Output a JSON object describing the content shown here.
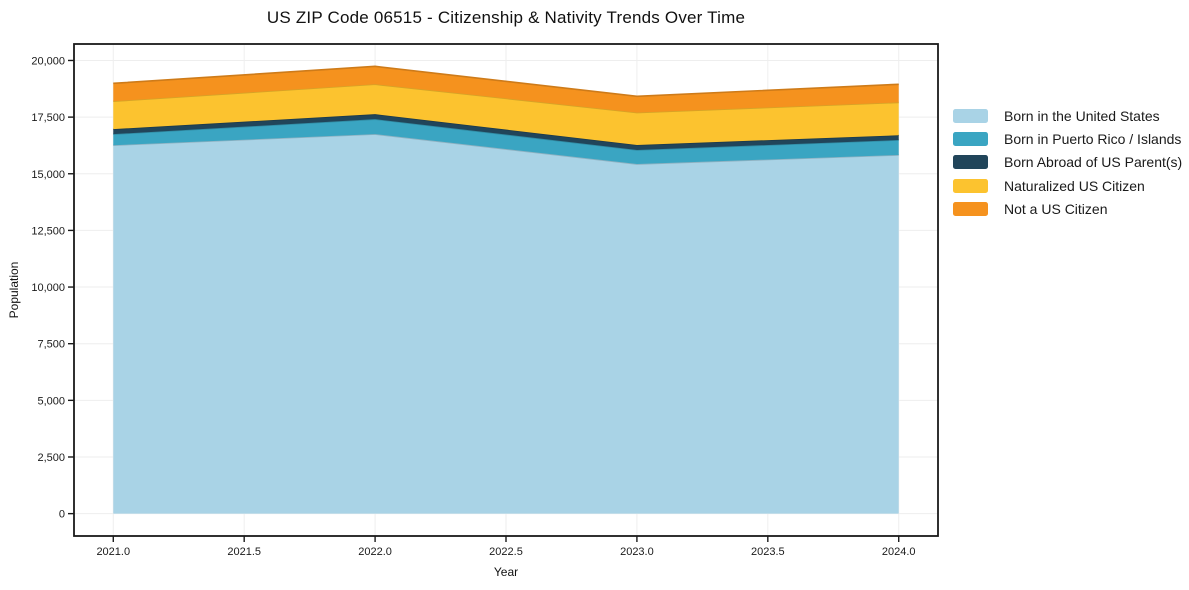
{
  "chart": {
    "title": "US ZIP Code 06515 - Citizenship & Nativity Trends Over Time",
    "xlabel": "Year",
    "ylabel": "Population"
  },
  "chart_data": {
    "type": "area",
    "stacked": true,
    "title": "US ZIP Code 06515 - Citizenship & Nativity Trends Over Time",
    "xlabel": "Year",
    "ylabel": "Population",
    "x": [
      2021,
      2022,
      2023,
      2024
    ],
    "series": [
      {
        "name": "Born in the United States",
        "color": "#a9d3e6",
        "values": [
          16260,
          16750,
          15430,
          15830
        ]
      },
      {
        "name": "Born in Puerto Rico / Islands",
        "color": "#3aa5c2",
        "values": [
          490,
          660,
          620,
          660
        ]
      },
      {
        "name": "Born Abroad of US Parent(s)",
        "color": "#21455a",
        "values": [
          220,
          220,
          220,
          210
        ]
      },
      {
        "name": "Naturalized US Citizen",
        "color": "#fcc32f",
        "values": [
          1230,
          1320,
          1430,
          1450
        ]
      },
      {
        "name": "Not a US Citizen",
        "color": "#f5921e",
        "values": [
          790,
          790,
          720,
          800
        ]
      }
    ],
    "stack_totals": [
      18990,
      19740,
      18420,
      18950
    ],
    "xlim": [
      2020.85,
      2024.15
    ],
    "ylim": [
      -987,
      20727
    ],
    "xticks": {
      "values": [
        2021.0,
        2021.5,
        2022.0,
        2022.5,
        2023.0,
        2023.5,
        2024.0
      ],
      "labels": [
        "2021.0",
        "2021.5",
        "2022.0",
        "2022.5",
        "2023.0",
        "2023.5",
        "2024.0"
      ]
    },
    "yticks": {
      "values": [
        0,
        2500,
        5000,
        7500,
        10000,
        12500,
        15000,
        17500,
        20000
      ],
      "labels": [
        "0",
        "2,500",
        "5,000",
        "7,500",
        "10,000",
        "12,500",
        "15,000",
        "17,500",
        "20,000"
      ]
    },
    "grid": true,
    "grid_color": "#eeeeee",
    "spine_color": "#1a1a1a",
    "legend_position": "right-outside"
  }
}
